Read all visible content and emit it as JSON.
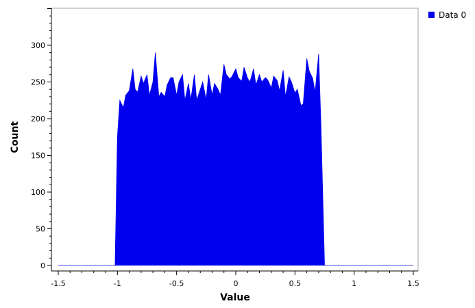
{
  "chart_data": {
    "type": "area",
    "xlabel": "Value",
    "ylabel": "Count",
    "xlim": [
      -1.5,
      1.5
    ],
    "ylim": [
      0,
      350
    ],
    "x_ticks": [
      -1.5,
      -1,
      -0.5,
      0,
      0.5,
      1,
      1.5
    ],
    "x_tick_labels": [
      "-1.5",
      "-1",
      "-0.5",
      "0",
      "0.5",
      "1",
      "1.5"
    ],
    "y_ticks": [
      0,
      50,
      100,
      150,
      200,
      250,
      300
    ],
    "y_tick_labels": [
      "0",
      "50",
      "100",
      "150",
      "200",
      "250",
      "300"
    ],
    "grid": false,
    "legend_position": "top-right",
    "series": [
      {
        "name": "Data 0",
        "color": "#0000ee",
        "x": [
          -1.5,
          -1.02,
          -1.0,
          -0.98,
          -0.95,
          -0.93,
          -0.9,
          -0.87,
          -0.85,
          -0.83,
          -0.8,
          -0.78,
          -0.75,
          -0.73,
          -0.7,
          -0.68,
          -0.65,
          -0.63,
          -0.6,
          -0.58,
          -0.55,
          -0.53,
          -0.5,
          -0.48,
          -0.45,
          -0.43,
          -0.4,
          -0.38,
          -0.35,
          -0.33,
          -0.3,
          -0.28,
          -0.25,
          -0.23,
          -0.2,
          -0.18,
          -0.15,
          -0.13,
          -0.1,
          -0.08,
          -0.05,
          -0.03,
          0.0,
          0.02,
          0.05,
          0.07,
          0.1,
          0.12,
          0.15,
          0.17,
          0.2,
          0.22,
          0.25,
          0.27,
          0.3,
          0.32,
          0.35,
          0.37,
          0.4,
          0.42,
          0.45,
          0.47,
          0.5,
          0.52,
          0.55,
          0.57,
          0.6,
          0.62,
          0.65,
          0.67,
          0.7,
          0.72,
          0.75,
          0.77,
          0.8,
          0.82,
          0.85,
          0.87,
          0.9,
          0.92,
          0.95,
          0.97,
          1.0,
          1.02,
          1.04,
          1.5
        ],
        "y": [
          0,
          0,
          175,
          225,
          215,
          232,
          238,
          268,
          240,
          236,
          258,
          248,
          260,
          232,
          250,
          290,
          230,
          236,
          230,
          246,
          256,
          256,
          232,
          250,
          260,
          225,
          248,
          226,
          260,
          225,
          240,
          250,
          226,
          260,
          232,
          248,
          240,
          232,
          274,
          260,
          254,
          258,
          268,
          256,
          251,
          270,
          255,
          250,
          268,
          246,
          260,
          250,
          256,
          253,
          242,
          258,
          252,
          238,
          266,
          230,
          257,
          250,
          235,
          240,
          218,
          220,
          282,
          265,
          255,
          236,
          288,
          190,
          0,
          0,
          0,
          0,
          0,
          0,
          0,
          0,
          0,
          0,
          0,
          0,
          0,
          0
        ]
      }
    ]
  }
}
